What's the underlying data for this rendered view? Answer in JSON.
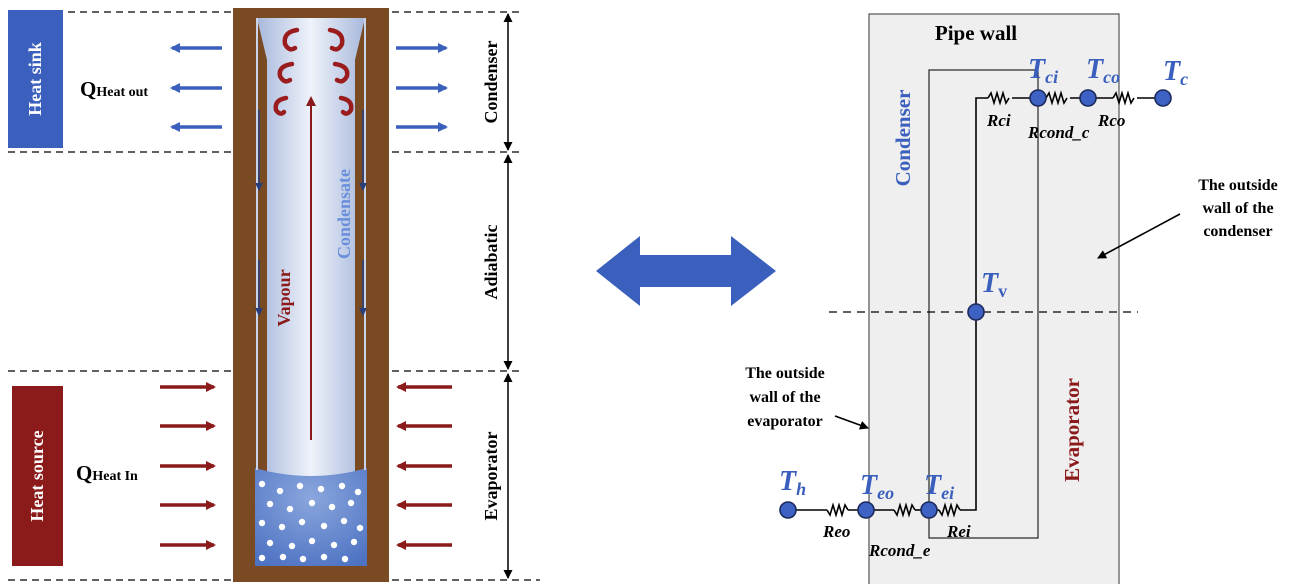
{
  "left": {
    "heat_sink": "Heat sink",
    "heat_source": "Heat source",
    "q_out_main": "Q",
    "q_out_sub": "Heat out",
    "q_in_main": "Q",
    "q_in_sub": "Heat In",
    "condenser": "Condenser",
    "adiabatic": "Adiabatic",
    "evaporator": "Evaporator",
    "vapour": "Vapour",
    "condensate": "Condensate"
  },
  "right": {
    "pipe_wall": "Pipe wall",
    "condenser": "Condenser",
    "evaporator": "Evaporator",
    "outside_cond_1": "The outside",
    "outside_cond_2": "wall of the",
    "outside_cond_3": "condenser",
    "outside_evap_1": "The outside",
    "outside_evap_2": "wall of the",
    "outside_evap_3": "evaporator",
    "t_ci": "T",
    "t_ci_sub": "ci",
    "t_co": "T",
    "t_co_sub": "co",
    "t_c": "T",
    "t_c_sub": "c",
    "t_v": "T",
    "t_v_sub": "v",
    "t_h": "T",
    "t_h_sub": "h",
    "t_eo": "T",
    "t_eo_sub": "eo",
    "t_ei": "T",
    "t_ei_sub": "ei",
    "r_ci": "Rci",
    "r_cond_c": "Rcond_c",
    "r_co": "Rco",
    "r_eo": "Reo",
    "r_cond_e": "Rcond_e",
    "r_ei": "Rei"
  },
  "colors": {
    "blue": "#3a5fbd",
    "dark_red": "#8b1a1a",
    "brown": "#7a4a22",
    "pipe_gray": "#efefef",
    "node_blue": "#3d62c4"
  }
}
